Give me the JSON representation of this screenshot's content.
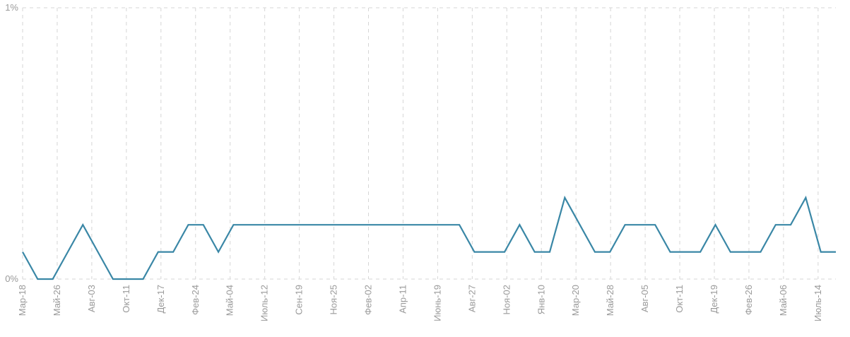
{
  "chart_data": {
    "type": "line",
    "y_tick_labels": [
      "0%",
      "1%"
    ],
    "ylim": [
      0,
      1
    ],
    "x_tick_labels": [
      "Мар-18",
      "Май-26",
      "Авг-03",
      "Окт-11",
      "Дек-17",
      "Фев-24",
      "Май-04",
      "Июль-12",
      "Сен-19",
      "Ноя-25",
      "Фев-02",
      "Апр-11",
      "Июнь-19",
      "Авг-27",
      "Ноя-02",
      "Янв-10",
      "Мар-20",
      "Май-28",
      "Авг-05",
      "Окт-11",
      "Дек-19",
      "Фев-26",
      "Май-06",
      "Июль-14"
    ],
    "grid": true,
    "line_color": "#3a87a6",
    "series": [
      {
        "values": [
          0.1,
          0.0,
          0.0,
          0.1,
          0.2,
          0.1,
          0.0,
          0.0,
          0.0,
          0.1,
          0.1,
          0.2,
          0.2,
          0.1,
          0.2,
          0.2,
          0.2,
          0.2,
          0.2,
          0.2,
          0.2,
          0.2,
          0.2,
          0.2,
          0.2,
          0.2,
          0.2,
          0.2,
          0.2,
          0.2,
          0.1,
          0.1,
          0.1,
          0.2,
          0.1,
          0.1,
          0.3,
          0.2,
          0.1,
          0.1,
          0.2,
          0.2,
          0.2,
          0.1,
          0.1,
          0.1,
          0.2,
          0.1,
          0.1,
          0.1,
          0.2,
          0.2,
          0.3,
          0.1,
          0.1
        ]
      }
    ]
  }
}
